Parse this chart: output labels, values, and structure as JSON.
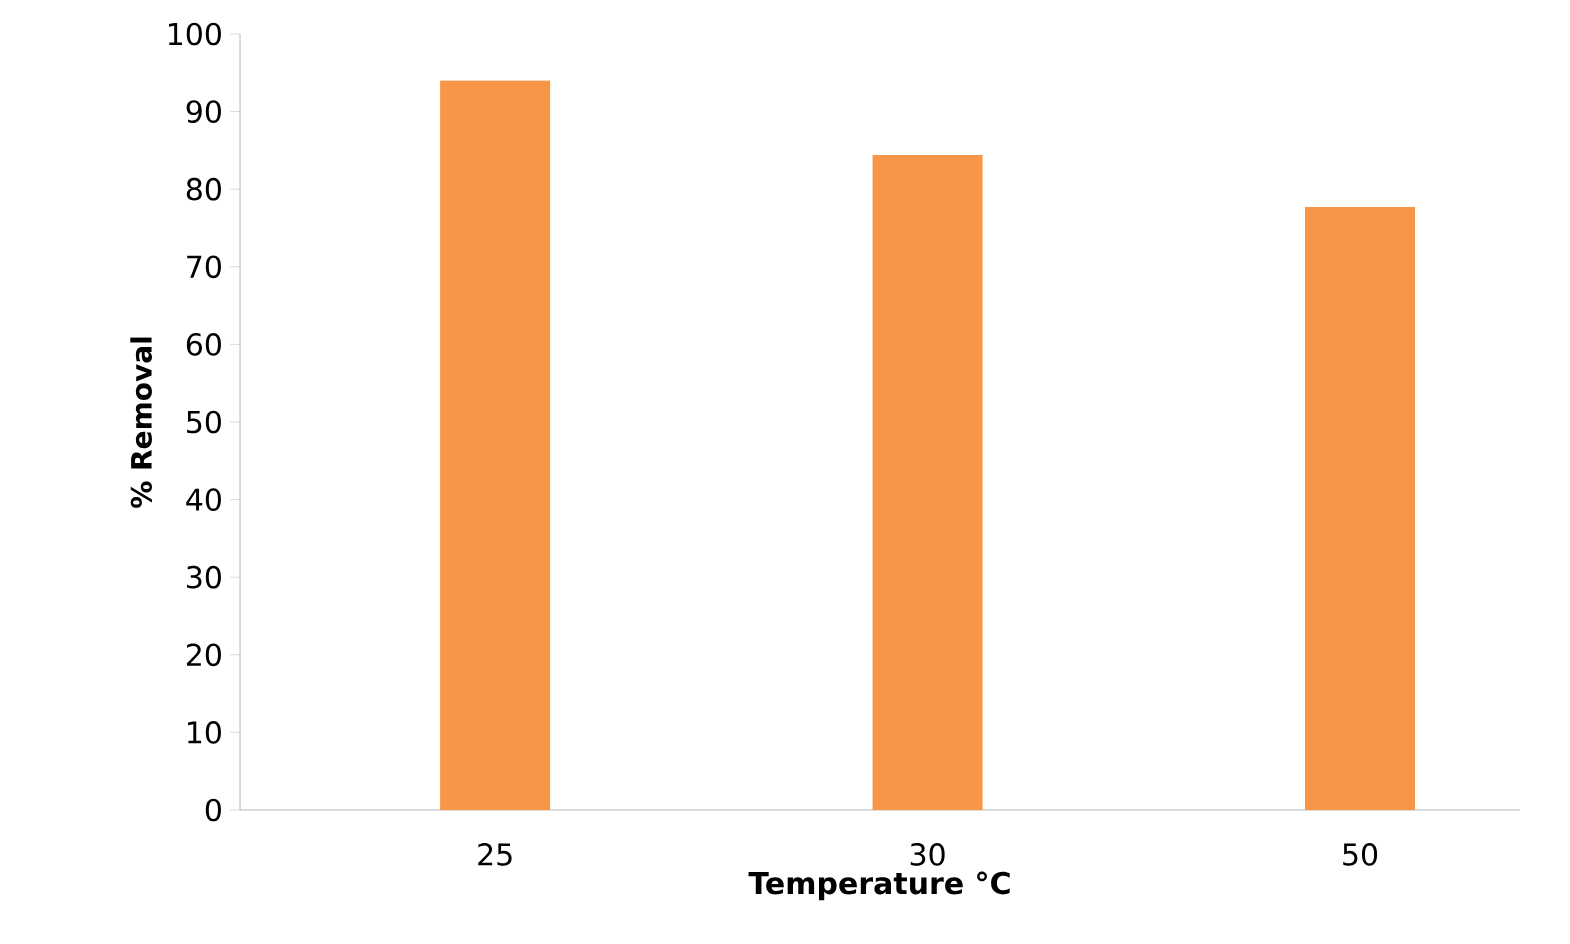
{
  "chart_data": {
    "type": "bar",
    "xlabel": "Temperature °C",
    "ylabel": "% Removal",
    "categories": [
      "25",
      "30",
      "50"
    ],
    "series": [
      {
        "color": "#f79646",
        "values": [
          94,
          84.4,
          77.7
        ]
      }
    ],
    "ylim": [
      0,
      100
    ],
    "yticks": [
      0,
      10,
      20,
      30,
      40,
      50,
      60,
      70,
      80,
      90,
      100
    ],
    "grid": false
  }
}
